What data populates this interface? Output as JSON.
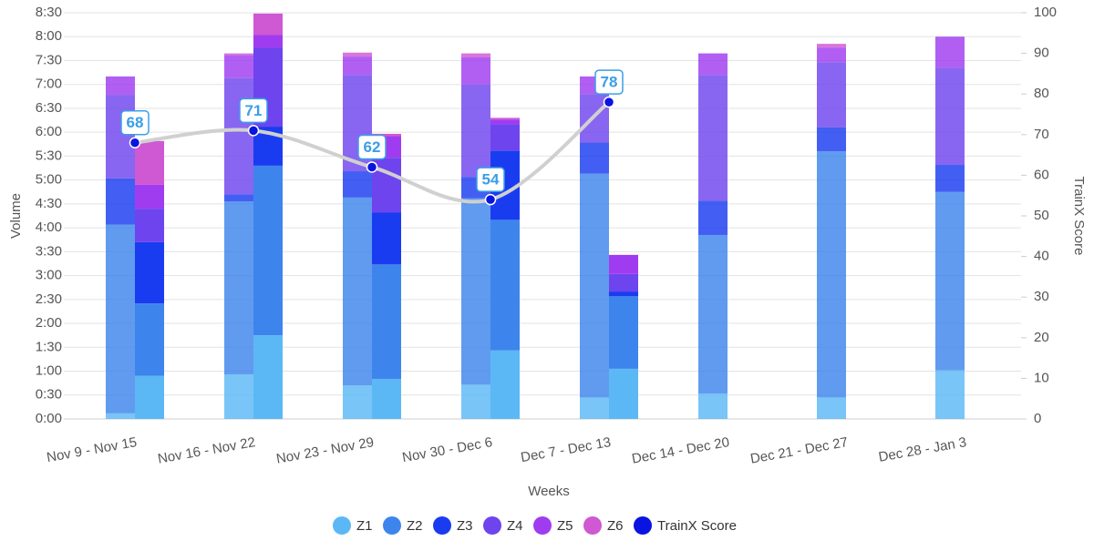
{
  "chart_data": {
    "type": "bar",
    "categories": [
      "Nov 9 - Nov 15",
      "Nov 16 - Nov 22",
      "Nov 23 - Nov 29",
      "Nov 30 - Dec 6",
      "Dec 7 - Dec 13",
      "Dec 14 - Dec 20",
      "Dec 21 - Dec 27",
      "Dec 28 - Jan 3"
    ],
    "x_label": "Weeks",
    "y_label": "Volume",
    "y2_label": "TrainX Score",
    "series": [
      {
        "name": "Z1",
        "color": "#5bb8f5",
        "values": [
          [
            7,
            54
          ],
          [
            56,
            105
          ],
          [
            42,
            50
          ],
          [
            43,
            86
          ],
          [
            27,
            63
          ],
          [
            32,
            null
          ],
          [
            27,
            null
          ],
          [
            61,
            null
          ]
        ]
      },
      {
        "name": "Z2",
        "color": "#3d85ec",
        "values": [
          [
            237,
            91
          ],
          [
            217,
            213
          ],
          [
            236,
            144
          ],
          [
            234,
            164
          ],
          [
            281,
            91
          ],
          [
            199,
            null
          ],
          [
            309,
            null
          ],
          [
            224,
            null
          ]
        ]
      },
      {
        "name": "Z3",
        "color": "#1a3cf0",
        "values": [
          [
            58,
            77
          ],
          [
            9,
            49
          ],
          [
            33,
            65
          ],
          [
            27,
            87
          ],
          [
            39,
            6
          ],
          [
            43,
            null
          ],
          [
            30,
            null
          ],
          [
            34,
            null
          ]
        ]
      },
      {
        "name": "Z4",
        "color": "#6e44ee",
        "values": [
          [
            105,
            42
          ],
          [
            146,
            99
          ],
          [
            121,
            69
          ],
          [
            116,
            33
          ],
          [
            61,
            22
          ],
          [
            158,
            null
          ],
          [
            82,
            null
          ],
          [
            122,
            null
          ]
        ]
      },
      {
        "name": "Z5",
        "color": "#a03cf0",
        "values": [
          [
            23,
            30
          ],
          [
            29,
            16
          ],
          [
            23,
            27
          ],
          [
            34,
            6
          ],
          [
            22,
            24
          ],
          [
            27,
            null
          ],
          [
            18,
            null
          ],
          [
            39,
            null
          ]
        ]
      },
      {
        "name": "Z6",
        "color": "#cf58d3",
        "values": [
          [
            0,
            55
          ],
          [
            2,
            27
          ],
          [
            5,
            3
          ],
          [
            5,
            2
          ],
          [
            0,
            0
          ],
          [
            0,
            null
          ],
          [
            5,
            null
          ],
          [
            0,
            null
          ]
        ]
      }
    ],
    "line_series": {
      "name": "TrainX Score",
      "color": "#0a14e0",
      "line_color": "#d0d0d0",
      "axis": "y2",
      "values": [
        68,
        71,
        62,
        54,
        78,
        null,
        null,
        null
      ]
    },
    "ylim": [
      0,
      510
    ],
    "yticks": [
      {
        "value": 0,
        "label": "0:00"
      },
      {
        "value": 30,
        "label": "0:30"
      },
      {
        "value": 60,
        "label": "1:00"
      },
      {
        "value": 90,
        "label": "1:30"
      },
      {
        "value": 120,
        "label": "2:00"
      },
      {
        "value": 150,
        "label": "2:30"
      },
      {
        "value": 180,
        "label": "3:00"
      },
      {
        "value": 210,
        "label": "3:30"
      },
      {
        "value": 240,
        "label": "4:00"
      },
      {
        "value": 270,
        "label": "4:30"
      },
      {
        "value": 300,
        "label": "5:00"
      },
      {
        "value": 330,
        "label": "5:30"
      },
      {
        "value": 360,
        "label": "6:00"
      },
      {
        "value": 390,
        "label": "6:30"
      },
      {
        "value": 420,
        "label": "7:00"
      },
      {
        "value": 450,
        "label": "7:30"
      },
      {
        "value": 480,
        "label": "8:00"
      },
      {
        "value": 510,
        "label": "8:30"
      }
    ],
    "y2lim": [
      0,
      100
    ],
    "y2ticks": [
      0,
      10,
      20,
      30,
      40,
      50,
      60,
      70,
      80,
      90,
      100
    ],
    "grid": true
  }
}
